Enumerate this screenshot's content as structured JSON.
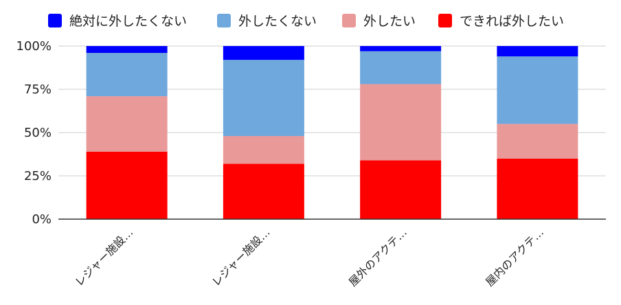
{
  "chart_data": {
    "type": "bar",
    "stacked": true,
    "normalized": true,
    "categories": [
      "レジャー施設…",
      "レジャー施設…",
      "屋外のアクテ…",
      "屋内のアクテ…"
    ],
    "series": [
      {
        "name": "できれば外したい",
        "color": "#ff0000",
        "values": [
          39,
          32,
          34,
          35
        ]
      },
      {
        "name": "外したい",
        "color": "#ea9999",
        "values": [
          32,
          16,
          44,
          20
        ]
      },
      {
        "name": "外したくない",
        "color": "#6fa8dc",
        "values": [
          25,
          44,
          19,
          39
        ]
      },
      {
        "name": "絶対に外したくない",
        "color": "#0000ff",
        "values": [
          4,
          8,
          3,
          6
        ]
      }
    ],
    "legend_order": [
      3,
      2,
      1,
      0
    ],
    "legend_position": "top",
    "y_ticks": [
      "0%",
      "25%",
      "50%",
      "75%",
      "100%"
    ],
    "ylim": [
      0,
      100
    ],
    "grid": true,
    "x_label_rotation": -45
  }
}
